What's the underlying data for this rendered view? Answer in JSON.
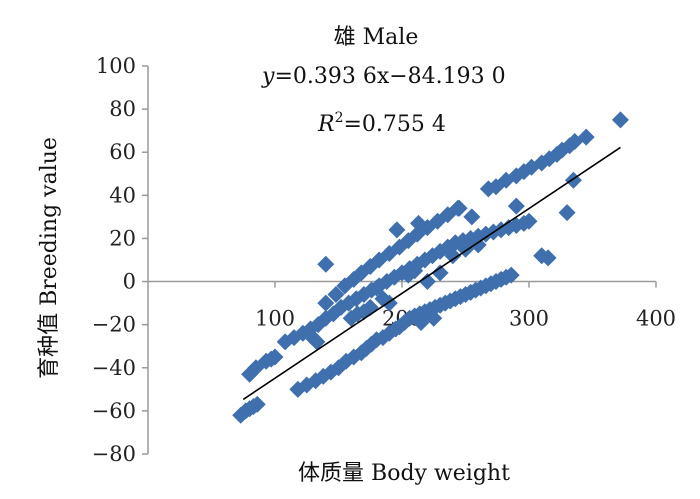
{
  "chart_data": {
    "type": "scatter",
    "title": "雄 Male",
    "equation": {
      "y": "y",
      "rest": "=0.393 6x−84.193 0"
    },
    "r2": {
      "r": "R",
      "sup": "2",
      "rest": "=0.755 4"
    },
    "xlabel": "体质量 Body weight",
    "ylabel": "育种值 Breeding value",
    "xlim": [
      0,
      400
    ],
    "ylim": [
      -80,
      100
    ],
    "xticks": [
      100,
      200,
      300,
      400
    ],
    "yticks": [
      100,
      80,
      60,
      40,
      20,
      0,
      -20,
      -40,
      -60,
      -80
    ],
    "ytick_labels": [
      "100",
      "80",
      "60",
      "40",
      "20",
      "0",
      "−20",
      "−40",
      "−60",
      "−80"
    ],
    "trendline": {
      "slope": 0.3936,
      "intercept": -84.193,
      "x_range": [
        75,
        372
      ]
    },
    "marker_color": "#3f6fad",
    "line_color": "#000000",
    "series": [
      {
        "points": [
          [
            73,
            -62
          ],
          [
            77,
            -60
          ],
          [
            80,
            -59
          ],
          [
            83,
            -58
          ],
          [
            86,
            -57
          ],
          [
            118,
            -50
          ],
          [
            125,
            -48
          ],
          [
            132,
            -46
          ],
          [
            138,
            -44
          ],
          [
            144,
            -42
          ],
          [
            150,
            -40
          ],
          [
            156,
            -37
          ],
          [
            162,
            -35
          ],
          [
            168,
            -33
          ],
          [
            172,
            -31
          ],
          [
            176,
            -29
          ],
          [
            180,
            -27
          ],
          [
            185,
            -26
          ],
          [
            190,
            -24
          ],
          [
            195,
            -22
          ],
          [
            198,
            -21
          ],
          [
            202,
            -19
          ],
          [
            206,
            -17
          ],
          [
            210,
            -16
          ],
          [
            214,
            -15
          ],
          [
            218,
            -14
          ],
          [
            222,
            -13
          ],
          [
            226,
            -12
          ],
          [
            230,
            -11
          ],
          [
            234,
            -10
          ],
          [
            238,
            -9
          ],
          [
            242,
            -8
          ],
          [
            246,
            -7
          ],
          [
            250,
            -6
          ],
          [
            254,
            -5
          ],
          [
            258,
            -4
          ],
          [
            262,
            -3
          ],
          [
            266,
            -2
          ],
          [
            270,
            -1
          ],
          [
            274,
            0
          ],
          [
            278,
            1
          ],
          [
            282,
            2
          ],
          [
            286,
            3
          ],
          [
            93,
            -37
          ],
          [
            97,
            -36
          ],
          [
            100,
            -35
          ],
          [
            108,
            -28
          ],
          [
            115,
            -26
          ],
          [
            122,
            -24
          ],
          [
            128,
            -22
          ],
          [
            134,
            -20
          ],
          [
            140,
            -17
          ],
          [
            146,
            -15
          ],
          [
            152,
            -12
          ],
          [
            158,
            -10
          ],
          [
            164,
            -8
          ],
          [
            170,
            -6
          ],
          [
            176,
            -4
          ],
          [
            182,
            -2
          ],
          [
            188,
            0
          ],
          [
            194,
            2
          ],
          [
            200,
            4
          ],
          [
            206,
            6
          ],
          [
            212,
            8
          ],
          [
            218,
            10
          ],
          [
            224,
            12
          ],
          [
            230,
            14
          ],
          [
            236,
            16
          ],
          [
            242,
            18
          ],
          [
            248,
            19
          ],
          [
            254,
            20
          ],
          [
            260,
            21
          ],
          [
            266,
            22
          ],
          [
            272,
            23
          ],
          [
            278,
            24
          ],
          [
            284,
            25
          ],
          [
            290,
            26
          ],
          [
            296,
            27
          ],
          [
            300,
            28
          ],
          [
            140,
            -10
          ],
          [
            148,
            -6
          ],
          [
            155,
            -2
          ],
          [
            162,
            1
          ],
          [
            168,
            4
          ],
          [
            175,
            7
          ],
          [
            182,
            10
          ],
          [
            190,
            13
          ],
          [
            198,
            16
          ],
          [
            205,
            19
          ],
          [
            212,
            22
          ],
          [
            220,
            25
          ],
          [
            228,
            28
          ],
          [
            236,
            31
          ],
          [
            244,
            34
          ],
          [
            268,
            43
          ],
          [
            274,
            44
          ],
          [
            282,
            47
          ],
          [
            290,
            49
          ],
          [
            296,
            51
          ],
          [
            302,
            53
          ],
          [
            310,
            55
          ],
          [
            316,
            57
          ],
          [
            322,
            59
          ],
          [
            326,
            61
          ],
          [
            332,
            63
          ],
          [
            336,
            65
          ],
          [
            345,
            67
          ],
          [
            372,
            75
          ],
          [
            80,
            -43
          ],
          [
            85,
            -40
          ],
          [
            140,
            8
          ],
          [
            310,
            12
          ],
          [
            315,
            11
          ],
          [
            330,
            32
          ],
          [
            335,
            47
          ],
          [
            290,
            35
          ],
          [
            255,
            30
          ],
          [
            245,
            34
          ],
          [
            213,
            27
          ],
          [
            196,
            24
          ],
          [
            128,
            -25
          ],
          [
            133,
            -28
          ],
          [
            225,
            -17
          ],
          [
            215,
            -19
          ],
          [
            190,
            -10
          ],
          [
            185,
            -8
          ],
          [
            170,
            -14
          ],
          [
            165,
            -15
          ],
          [
            210,
            5
          ],
          [
            205,
            3
          ],
          [
            240,
            12
          ],
          [
            250,
            15
          ],
          [
            260,
            17
          ],
          [
            220,
            0
          ],
          [
            230,
            4
          ],
          [
            180,
            -3
          ],
          [
            175,
            -12
          ],
          [
            160,
            -17
          ]
        ]
      }
    ]
  }
}
